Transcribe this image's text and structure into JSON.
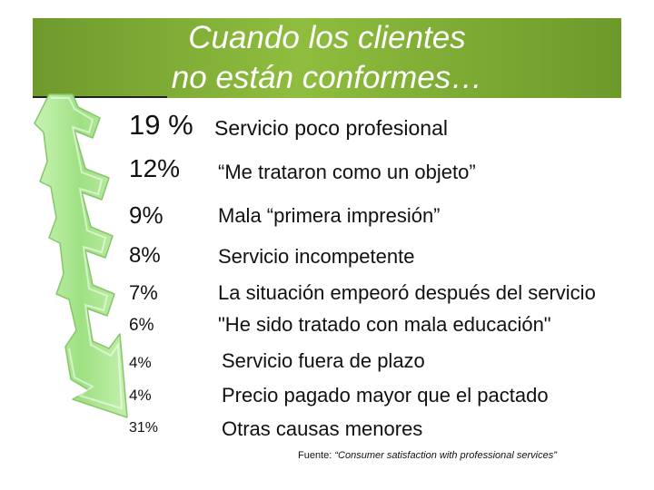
{
  "title": {
    "line1": "Cuando los clientes",
    "line2": "no están conformes…"
  },
  "colors": {
    "title_bar": "#7fae35",
    "arrow_fill": "#a6e58a",
    "arrow_stroke": "#8fd06f"
  },
  "items": [
    {
      "percent": "19 %",
      "label": "Servicio poco profesional"
    },
    {
      "percent": "12%",
      "label": "“Me trataron como un objeto”"
    },
    {
      "percent": "9%",
      "label": "Mala “primera impresión”"
    },
    {
      "percent": "8%",
      "label": "Servicio incompetente"
    },
    {
      "percent": "7%",
      "label": "La situación empeoró después del servicio"
    },
    {
      "percent": "6%",
      "label": "\"He sido tratado con mala educación\""
    },
    {
      "percent": "4%",
      "label": "Servicio fuera de plazo"
    },
    {
      "percent": "4%",
      "label": "Precio pagado mayor que el pactado"
    },
    {
      "percent": "31%",
      "label": "Otras causas menores"
    }
  ],
  "source": {
    "prefix": "Fuente: ",
    "text": "“Consumer satisfaction with professional services”"
  }
}
